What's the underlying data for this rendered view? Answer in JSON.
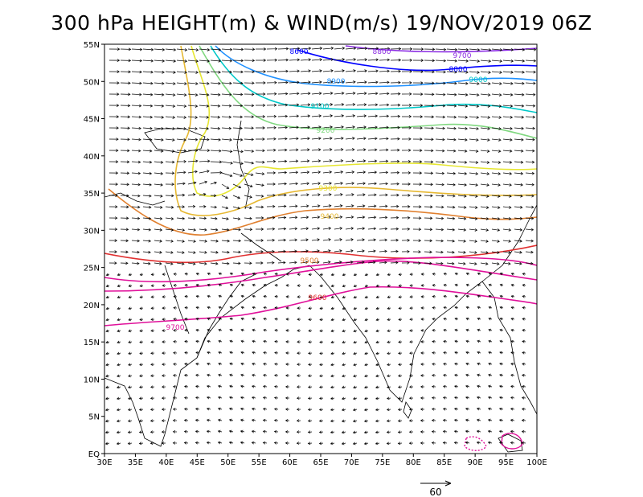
{
  "title": "300 hPa HEIGHT(m) & WIND(m/s) 19/NOV/2019 06Z",
  "lat_labels": [
    "EQ",
    "5N",
    "10N",
    "15N",
    "20N",
    "25N",
    "30N",
    "35N",
    "40N",
    "45N",
    "50N",
    "55N"
  ],
  "lon_labels": [
    "30E",
    "35E",
    "40E",
    "45E",
    "50E",
    "55E",
    "60E",
    "65E",
    "70E",
    "75E",
    "80E",
    "85E",
    "90E",
    "95E",
    "100E"
  ],
  "domain": {
    "lon_range": [
      30,
      100
    ],
    "lat_range": [
      0,
      55
    ]
  },
  "reference_vector": {
    "label": "60",
    "units": "m/s"
  },
  "contour_levels": [
    {
      "level": "8800",
      "color": "#8a2be2"
    },
    {
      "level": "8900",
      "color": "#0000ff"
    },
    {
      "level": "9000",
      "color": "#1e90ff"
    },
    {
      "level": "9100",
      "color": "#00c8c8"
    },
    {
      "level": "9200",
      "color": "#80d880"
    },
    {
      "level": "9300",
      "color": "#e6e632"
    },
    {
      "level": "9400",
      "color": "#e6b832"
    },
    {
      "level": "9500",
      "color": "#e08030"
    },
    {
      "level": "9600",
      "color": "#e03030"
    },
    {
      "level": "9700",
      "color": "#e0109a"
    }
  ],
  "contour_labels": [
    {
      "text": "8800",
      "color": "#8a2be2"
    },
    {
      "text": "9700",
      "color": "#8a2be2"
    },
    {
      "text": "8600",
      "color": "#0000ff"
    },
    {
      "text": "8800",
      "color": "#0000ff"
    },
    {
      "text": "8900",
      "color": "#1e90ff"
    },
    {
      "text": "9000",
      "color": "#00c8c8"
    },
    {
      "text": "9100",
      "color": "#00c8c8"
    },
    {
      "text": "9200",
      "color": "#80d880"
    },
    {
      "text": "9300",
      "color": "#e6e632"
    },
    {
      "text": "9400",
      "color": "#e6b832"
    },
    {
      "text": "9500",
      "color": "#e08030"
    },
    {
      "text": "9600",
      "color": "#e03030"
    },
    {
      "text": "9700",
      "color": "#e0109a"
    }
  ]
}
